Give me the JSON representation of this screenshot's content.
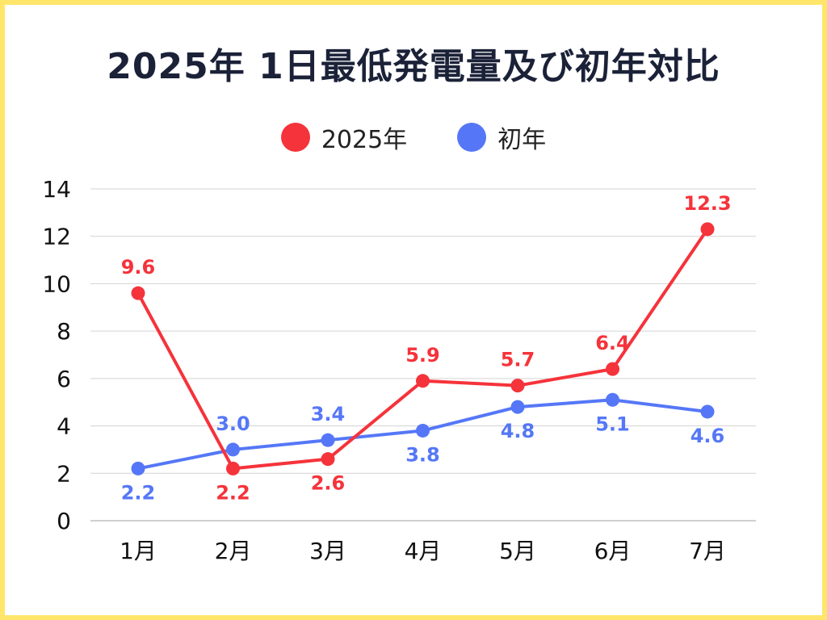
{
  "chart_data": {
    "type": "line",
    "title": "2025年 1日最低発電量及び初年対比",
    "categories": [
      "1月",
      "2月",
      "3月",
      "4月",
      "5月",
      "6月",
      "7月"
    ],
    "y_ticks": [
      "0",
      "2",
      "4",
      "6",
      "8",
      "10",
      "12",
      "14"
    ],
    "ylim": [
      0,
      14
    ],
    "grid": true,
    "legend_position": "top-center",
    "series": [
      {
        "name": "2025年",
        "color": "#f5333b",
        "values": [
          9.6,
          2.2,
          2.6,
          5.9,
          5.7,
          6.4,
          12.3
        ],
        "labels": [
          "9.6",
          "2.2",
          "2.6",
          "5.9",
          "5.7",
          "6.4",
          "12.3"
        ],
        "label_side": [
          "above",
          "below",
          "below",
          "above",
          "above",
          "above",
          "above"
        ]
      },
      {
        "name": "初年",
        "color": "#5577f7",
        "values": [
          2.2,
          3.0,
          3.4,
          3.8,
          4.8,
          5.1,
          4.6
        ],
        "labels": [
          "2.2",
          "3.0",
          "3.4",
          "3.8",
          "4.8",
          "5.1",
          "4.6"
        ],
        "label_side": [
          "below",
          "above",
          "above",
          "below",
          "below",
          "below",
          "below"
        ]
      }
    ]
  }
}
